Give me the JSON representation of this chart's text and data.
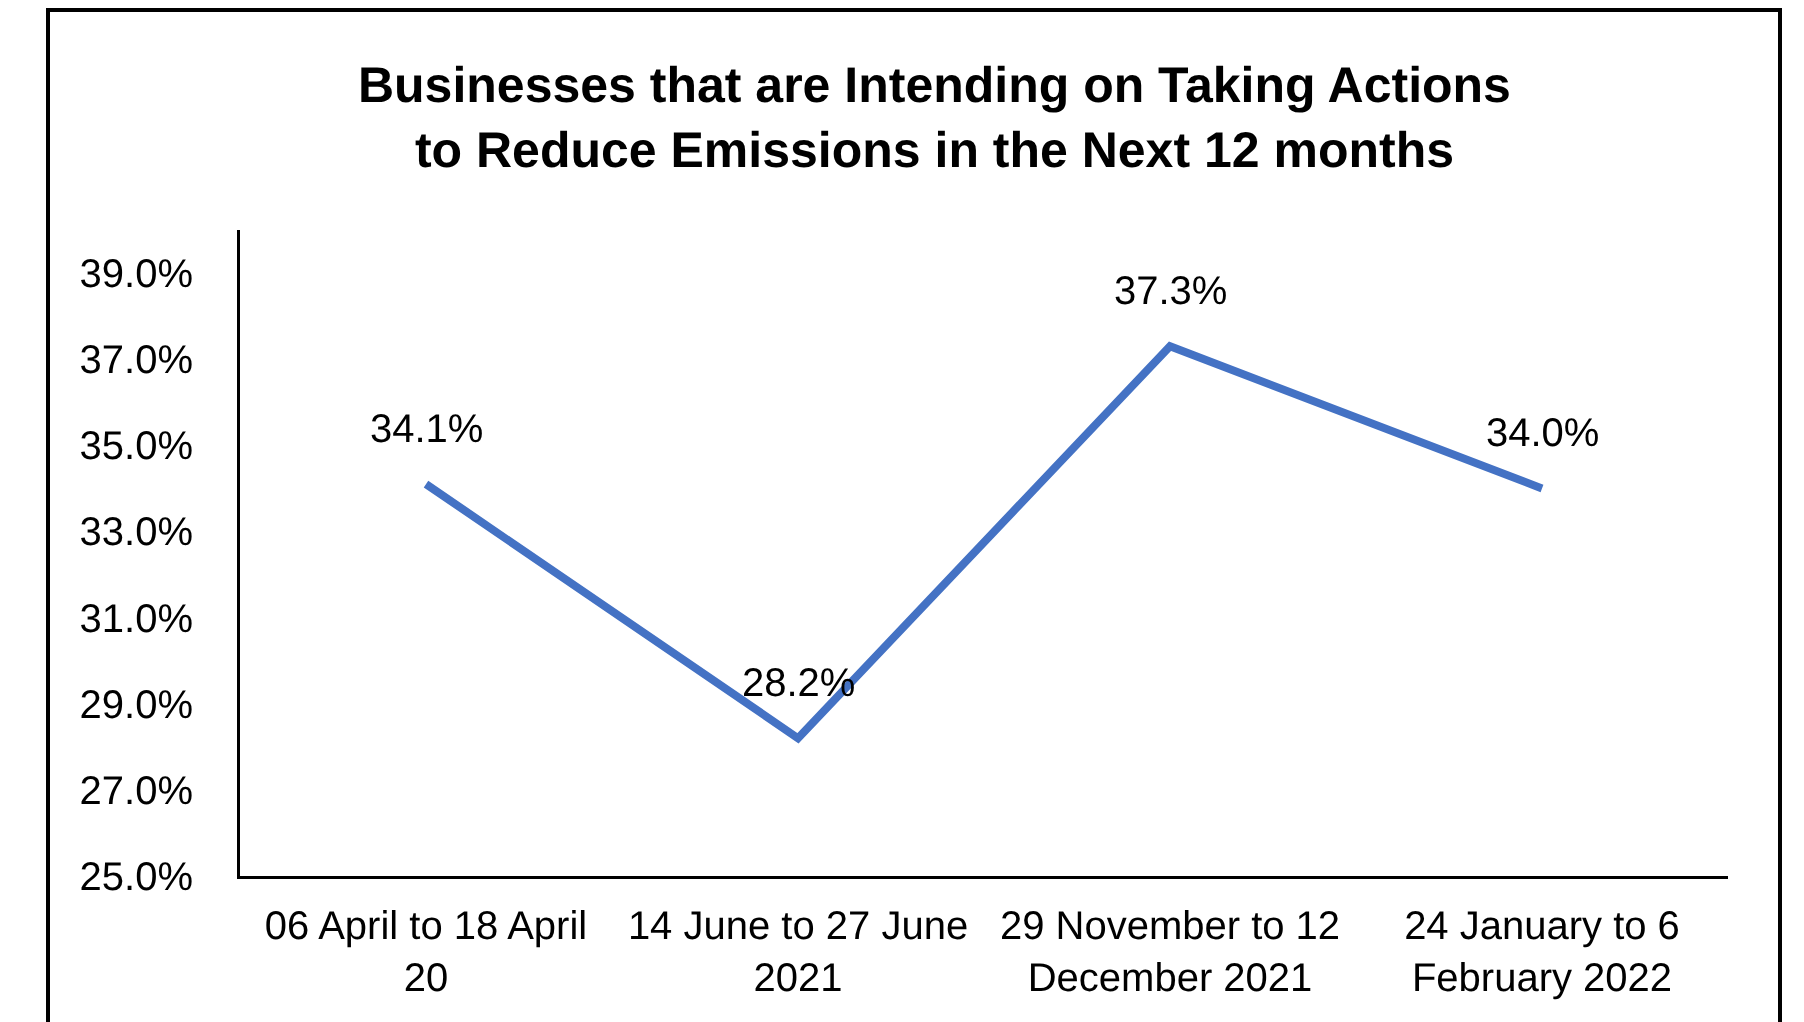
{
  "chart_data": {
    "type": "line",
    "title": "Businesses that are Intending on Taking Actions to Reduce Emissions in the Next 12 months",
    "categories": [
      "06 April to 18 April 20",
      "14 June to 27 June 2021",
      "29 November to 12 December 2021",
      "24 January to 6 February 2022"
    ],
    "values": [
      34.1,
      28.2,
      37.3,
      34.0
    ],
    "color": "#4472c4",
    "value_labels": [
      "34.1%",
      "28.2%",
      "37.3%",
      "34.0%"
    ],
    "ylim": [
      25,
      40
    ],
    "yticks": [
      {
        "value": 25,
        "label": "25.0%"
      },
      {
        "value": 27,
        "label": "27.0%"
      },
      {
        "value": 29,
        "label": "29.0%"
      },
      {
        "value": 31,
        "label": "31.0%"
      },
      {
        "value": 33,
        "label": "33.0%"
      },
      {
        "value": 35,
        "label": "35.0%"
      },
      {
        "value": 37,
        "label": "37.0%"
      },
      {
        "value": 39,
        "label": "39.0%"
      }
    ],
    "grid": false,
    "legend": false,
    "marker": "none"
  }
}
